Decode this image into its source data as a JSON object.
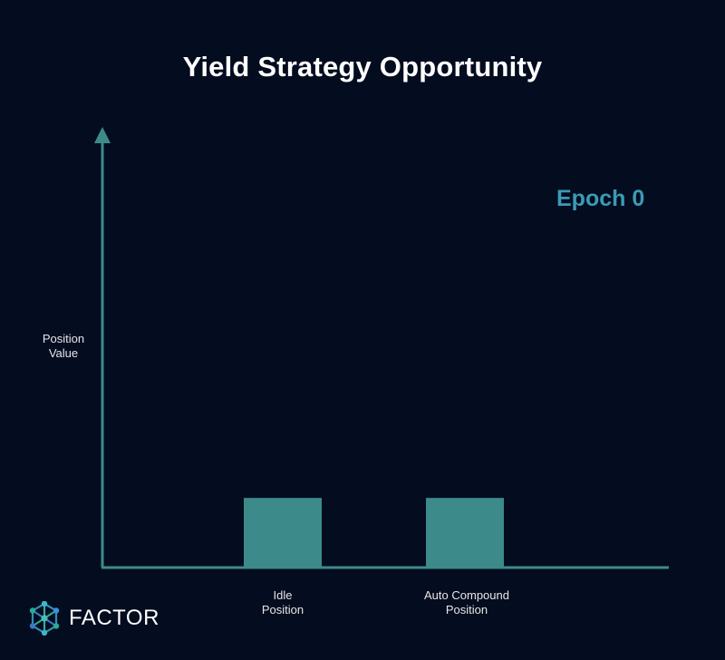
{
  "chart_data": {
    "type": "bar",
    "title": "Yield Strategy Opportunity",
    "annotation": "Epoch 0",
    "ylabel_lines": [
      "Position",
      "Value"
    ],
    "categories": [
      {
        "lines": [
          "Idle",
          "Position"
        ]
      },
      {
        "lines": [
          "Auto Compound",
          "Position"
        ]
      }
    ],
    "values": [
      1,
      1
    ],
    "ylim": [
      0,
      6.2
    ],
    "grid": false,
    "colors": {
      "axis": "#3d8a8b",
      "bar": "#3d8a8b",
      "annotation": "#3b9bb5",
      "background": "#040c1f"
    }
  },
  "brand": {
    "name": "FACTOR",
    "logo_icon": "hexagon-network-icon"
  }
}
